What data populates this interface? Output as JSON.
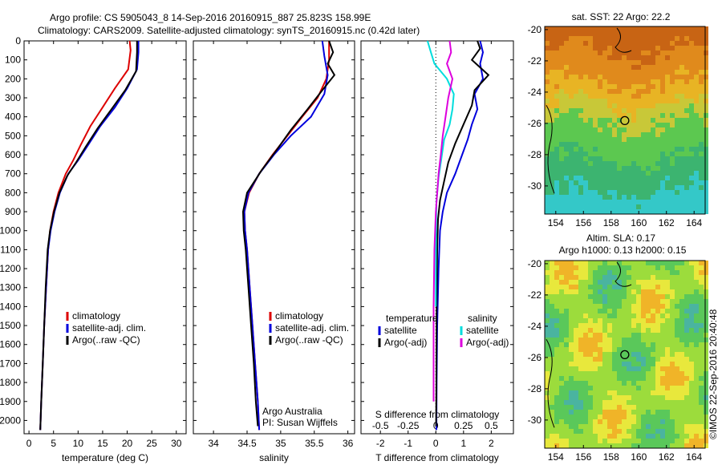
{
  "header": {
    "line1": "Argo profile: CS 5905043_8 14-Sep-2016 20160915_887 25.823S 158.99E",
    "line2": "Climatology: CARS2009. Satellite-adjusted climatology: synTS_20160915.nc (0.42d later)"
  },
  "credit": "©IMOS 22-Sep-2016 20:40:48",
  "colors": {
    "climatology": "#dd0000",
    "satellite": "#0000dd",
    "argo": "#000000",
    "s_satellite": "#00dddd",
    "s_argo": "#dd00dd"
  },
  "chart_data": [
    {
      "type": "line",
      "id": "temperature",
      "xlabel": "temperature (deg C)",
      "ylabel": "",
      "xlim": [
        -1,
        32
      ],
      "ylim": [
        2070,
        0
      ],
      "xticks": [
        0,
        5,
        10,
        15,
        20,
        25,
        30
      ],
      "yticks": [
        0,
        100,
        200,
        300,
        400,
        500,
        600,
        700,
        800,
        900,
        1000,
        1100,
        1200,
        1300,
        1400,
        1500,
        1600,
        1700,
        1800,
        1900,
        2000
      ],
      "legend": [
        "climatology",
        "satellite-adj. clim.",
        "Argo(..raw -QC)"
      ],
      "series": [
        {
          "name": "climatology",
          "color": "#dd0000",
          "points": [
            [
              20.5,
              0
            ],
            [
              20.7,
              50
            ],
            [
              20.2,
              150
            ],
            [
              17.5,
              250
            ],
            [
              15,
              350
            ],
            [
              12.5,
              450
            ],
            [
              10.5,
              550
            ],
            [
              9,
              630
            ],
            [
              7.5,
              700
            ],
            [
              6,
              800
            ],
            [
              5,
              900
            ],
            [
              4.3,
              1000
            ],
            [
              3.9,
              1100
            ],
            [
              3.5,
              1300
            ],
            [
              3.1,
              1500
            ],
            [
              2.8,
              1700
            ],
            [
              2.5,
              1900
            ],
            [
              2.3,
              2050
            ]
          ]
        },
        {
          "name": "satellite-adj. clim.",
          "color": "#0000dd",
          "points": [
            [
              22.3,
              0
            ],
            [
              22.3,
              60
            ],
            [
              22,
              150
            ],
            [
              20,
              250
            ],
            [
              17.5,
              350
            ],
            [
              14.5,
              450
            ],
            [
              12,
              550
            ],
            [
              10,
              630
            ],
            [
              8,
              700
            ],
            [
              6.3,
              800
            ],
            [
              5.2,
              900
            ],
            [
              4.4,
              1000
            ],
            [
              3.9,
              1100
            ],
            [
              3.5,
              1300
            ],
            [
              3.1,
              1500
            ],
            [
              2.8,
              1700
            ],
            [
              2.5,
              1900
            ],
            [
              2.3,
              2050
            ]
          ]
        },
        {
          "name": "Argo(..raw -QC)",
          "color": "#000000",
          "points": [
            [
              22,
              0
            ],
            [
              22,
              60
            ],
            [
              21.8,
              160
            ],
            [
              19.6,
              260
            ],
            [
              16.8,
              360
            ],
            [
              14,
              460
            ],
            [
              11.5,
              560
            ],
            [
              9.6,
              640
            ],
            [
              7.8,
              710
            ],
            [
              6.2,
              800
            ],
            [
              5.1,
              900
            ],
            [
              4.3,
              1000
            ],
            [
              3.8,
              1100
            ],
            [
              3.4,
              1300
            ],
            [
              3.1,
              1500
            ],
            [
              2.8,
              1700
            ],
            [
              2.5,
              1900
            ],
            [
              2.3,
              2050
            ]
          ]
        }
      ]
    },
    {
      "type": "line",
      "id": "salinity",
      "xlabel": "salinity",
      "xlim": [
        33.7,
        36.1
      ],
      "ylim": [
        2070,
        0
      ],
      "xticks": [
        34,
        34.5,
        35,
        35.5,
        36
      ],
      "legend": [
        "climatology",
        "satellite-adj. clim.",
        "Argo(..raw -QC)"
      ],
      "annotation": [
        "Argo Australia",
        "PI: Susan Wijffels"
      ],
      "series": [
        {
          "name": "climatology",
          "color": "#dd0000",
          "points": [
            [
              35.72,
              0
            ],
            [
              35.72,
              100
            ],
            [
              35.68,
              200
            ],
            [
              35.55,
              300
            ],
            [
              35.32,
              400
            ],
            [
              35.1,
              500
            ],
            [
              34.88,
              600
            ],
            [
              34.68,
              700
            ],
            [
              34.53,
              800
            ],
            [
              34.46,
              900
            ],
            [
              34.47,
              1000
            ],
            [
              34.5,
              1100
            ],
            [
              34.54,
              1300
            ],
            [
              34.58,
              1500
            ],
            [
              34.62,
              1700
            ],
            [
              34.66,
              1900
            ],
            [
              34.68,
              2050
            ]
          ]
        },
        {
          "name": "satellite-adj. clim.",
          "color": "#0000dd",
          "points": [
            [
              35.62,
              0
            ],
            [
              35.65,
              80
            ],
            [
              35.7,
              180
            ],
            [
              35.65,
              280
            ],
            [
              35.45,
              400
            ],
            [
              35.15,
              500
            ],
            [
              34.9,
              600
            ],
            [
              34.68,
              700
            ],
            [
              34.52,
              800
            ],
            [
              34.46,
              900
            ],
            [
              34.47,
              1000
            ],
            [
              34.5,
              1100
            ],
            [
              34.54,
              1300
            ],
            [
              34.58,
              1500
            ],
            [
              34.62,
              1700
            ],
            [
              34.66,
              1900
            ],
            [
              34.68,
              2050
            ]
          ]
        },
        {
          "name": "Argo(..raw -QC)",
          "color": "#000000",
          "points": [
            [
              35.72,
              0
            ],
            [
              35.78,
              60
            ],
            [
              35.7,
              120
            ],
            [
              35.8,
              180
            ],
            [
              35.62,
              260
            ],
            [
              35.4,
              360
            ],
            [
              35.15,
              470
            ],
            [
              34.95,
              570
            ],
            [
              34.72,
              680
            ],
            [
              34.5,
              800
            ],
            [
              34.44,
              900
            ],
            [
              34.45,
              1000
            ],
            [
              34.48,
              1100
            ],
            [
              34.52,
              1300
            ],
            [
              34.56,
              1500
            ],
            [
              34.6,
              1700
            ],
            [
              34.63,
              1900
            ],
            [
              34.66,
              2030
            ]
          ]
        }
      ]
    },
    {
      "type": "line",
      "id": "difference",
      "xlabel": "T difference from climatology",
      "xlabel2": "S difference from climatology",
      "xlim": [
        -2.7,
        2.8
      ],
      "ylim": [
        2070,
        0
      ],
      "xticks": [
        -2,
        -1,
        0,
        1,
        2
      ],
      "xticks2": [
        -0.5,
        -0.25,
        0,
        0.25,
        0.5
      ],
      "legend": {
        "temperature": "temperature",
        "salinity": "salinity",
        "t_sat": "satellite",
        "t_argo": "Argo(-adj)",
        "s_sat": "satellite",
        "s_argo": "Argo(-adj)"
      },
      "series": [
        {
          "name": "T satellite",
          "color": "#0000dd",
          "points": [
            [
              1.6,
              0
            ],
            [
              1.7,
              60
            ],
            [
              1.6,
              120
            ],
            [
              1.7,
              200
            ],
            [
              1.4,
              280
            ],
            [
              1.5,
              360
            ],
            [
              1.3,
              440
            ],
            [
              1.15,
              520
            ],
            [
              0.95,
              600
            ],
            [
              0.7,
              700
            ],
            [
              0.4,
              800
            ],
            [
              0.25,
              900
            ],
            [
              0.15,
              1000
            ],
            [
              0.1,
              1200
            ],
            [
              0.05,
              1500
            ],
            [
              0.03,
              1800
            ],
            [
              0.02,
              2050
            ]
          ]
        },
        {
          "name": "T Argo(-adj)",
          "color": "#000000",
          "points": [
            [
              1.5,
              0
            ],
            [
              1.6,
              40
            ],
            [
              1.3,
              100
            ],
            [
              1.9,
              180
            ],
            [
              1.4,
              260
            ],
            [
              1.3,
              340
            ],
            [
              1.0,
              440
            ],
            [
              0.7,
              540
            ],
            [
              0.45,
              640
            ],
            [
              0.3,
              740
            ],
            [
              0.15,
              840
            ],
            [
              0.08,
              940
            ],
            [
              0.05,
              1100
            ],
            [
              0.03,
              1400
            ],
            [
              0.02,
              1800
            ],
            [
              0.01,
              2030
            ]
          ]
        },
        {
          "name": "S satellite",
          "color": "#00dddd",
          "points": [
            [
              -0.3,
              0
            ],
            [
              -0.2,
              50
            ],
            [
              -0.05,
              120
            ],
            [
              0.4,
              200
            ],
            [
              0.65,
              280
            ],
            [
              0.6,
              360
            ],
            [
              0.5,
              440
            ],
            [
              0.3,
              520
            ],
            [
              0.2,
              620
            ],
            [
              0.1,
              720
            ],
            [
              0.02,
              850
            ],
            [
              0.01,
              1000
            ],
            [
              0.0,
              1200
            ],
            [
              0.0,
              1400
            ]
          ]
        },
        {
          "name": "S Argo(-adj)",
          "color": "#dd00dd",
          "points": [
            [
              0.5,
              0
            ],
            [
              0.55,
              60
            ],
            [
              0.4,
              120
            ],
            [
              0.6,
              200
            ],
            [
              0.45,
              300
            ],
            [
              0.35,
              400
            ],
            [
              0.25,
              500
            ],
            [
              0.18,
              600
            ],
            [
              0.1,
              700
            ],
            [
              0.05,
              800
            ],
            [
              0.0,
              900
            ],
            [
              -0.05,
              1100
            ],
            [
              -0.08,
              1400
            ],
            [
              -0.08,
              1700
            ],
            [
              -0.08,
              1900
            ]
          ]
        }
      ]
    },
    {
      "type": "heatmap",
      "id": "sst-map",
      "title": "sat. SST: 22 Argo: 22.2",
      "xticks": [
        154,
        156,
        158,
        160,
        162,
        164
      ],
      "yticks": [
        -20,
        -22,
        -24,
        -26,
        -28,
        -30
      ],
      "xlim": [
        153.2,
        164.8
      ],
      "ylim": [
        -31.8,
        -19.8
      ],
      "marker": [
        158.99,
        -25.82
      ]
    },
    {
      "type": "heatmap",
      "id": "sla-map",
      "title": "Altim. SLA: 0.17",
      "subtitle": "Argo h1000: 0.13 h2000: 0.15",
      "xticks": [
        154,
        156,
        158,
        160,
        162,
        164
      ],
      "yticks": [
        -20,
        -22,
        -24,
        -26,
        -28,
        -30
      ],
      "xlim": [
        153.2,
        164.8
      ],
      "ylim": [
        -31.8,
        -19.8
      ],
      "marker": [
        158.99,
        -25.82
      ]
    }
  ]
}
